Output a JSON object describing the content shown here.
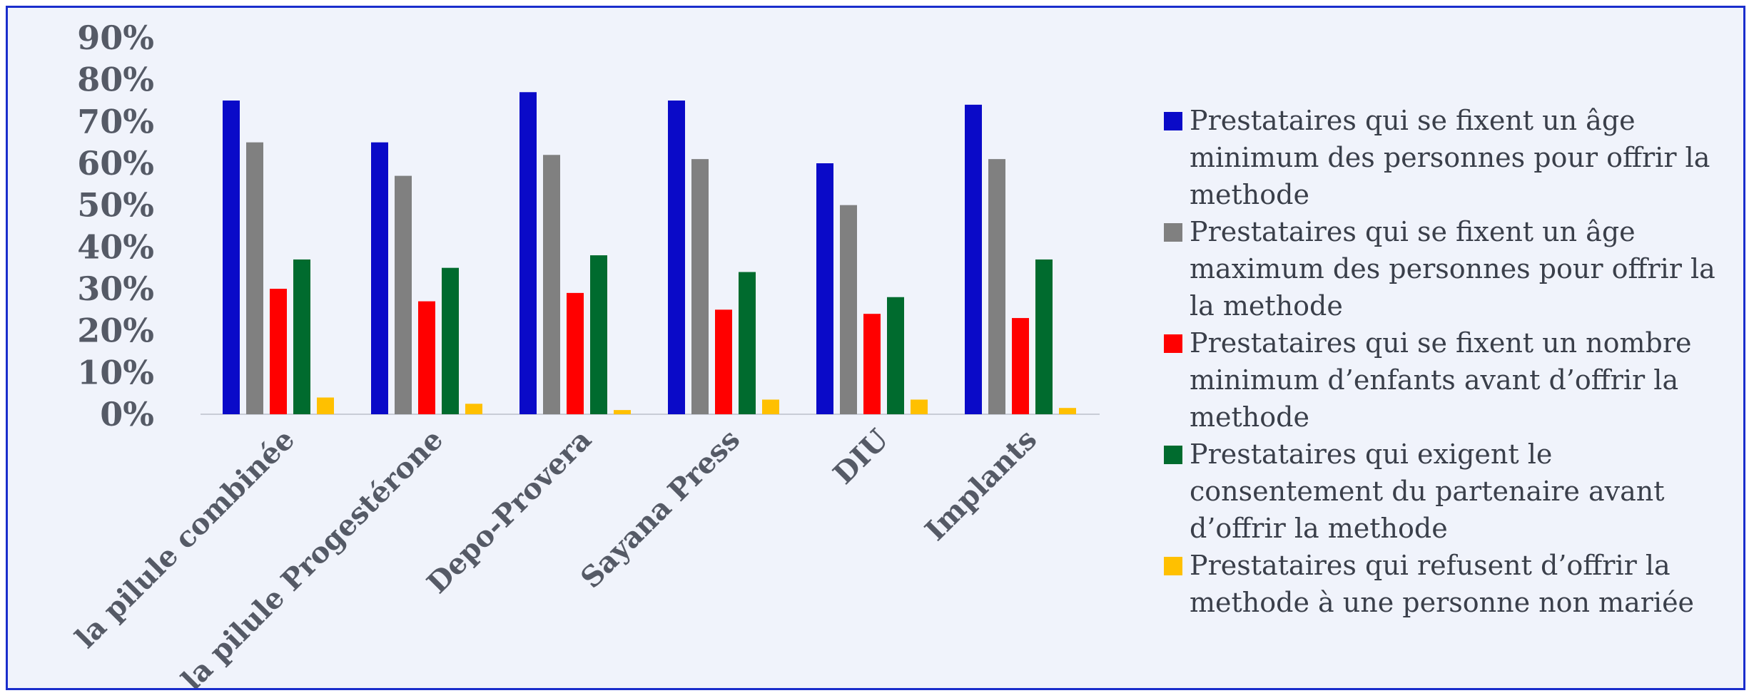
{
  "chart_data": {
    "type": "bar",
    "title": "",
    "xlabel": "",
    "ylabel": "",
    "ylim": [
      0,
      90
    ],
    "yticks": [
      "0%",
      "10%",
      "20%",
      "30%",
      "40%",
      "50%",
      "60%",
      "70%",
      "80%",
      "90%"
    ],
    "categories": [
      "la pilule  combinée",
      "la pilule Progestérone",
      "Depo-Provera",
      "Sayana Press",
      "DIU",
      "Implants"
    ],
    "series": [
      {
        "name": "Prestataires qui se fixent un âge minimum des personnes pour offrir la methode",
        "color": "#0a0ac8",
        "values": [
          75,
          65,
          77,
          75,
          60,
          74
        ]
      },
      {
        "name": "Prestataires qui se fixent un âge maximum des personnes pour offrir la  la methode",
        "color": "#808080",
        "values": [
          65,
          57,
          62,
          61,
          50,
          61
        ]
      },
      {
        "name": "Prestataires qui se fixent un nombre minimum d’enfants avant d’offrir  la methode",
        "color": "#ff0000",
        "values": [
          30,
          27,
          29,
          25,
          24,
          23
        ]
      },
      {
        "name": "Prestataires qui exigent le consentement du partenaire avant d’offrir la methode",
        "color": "#006b2e",
        "values": [
          37,
          35,
          38,
          34,
          28,
          37
        ]
      },
      {
        "name": "Prestataires qui refusent d’offrir la methode à une personne non mariée",
        "color": "#ffc000",
        "values": [
          4,
          2.5,
          1,
          3.5,
          3.5,
          1.5
        ]
      }
    ],
    "grid": false,
    "legend_position": "right"
  }
}
